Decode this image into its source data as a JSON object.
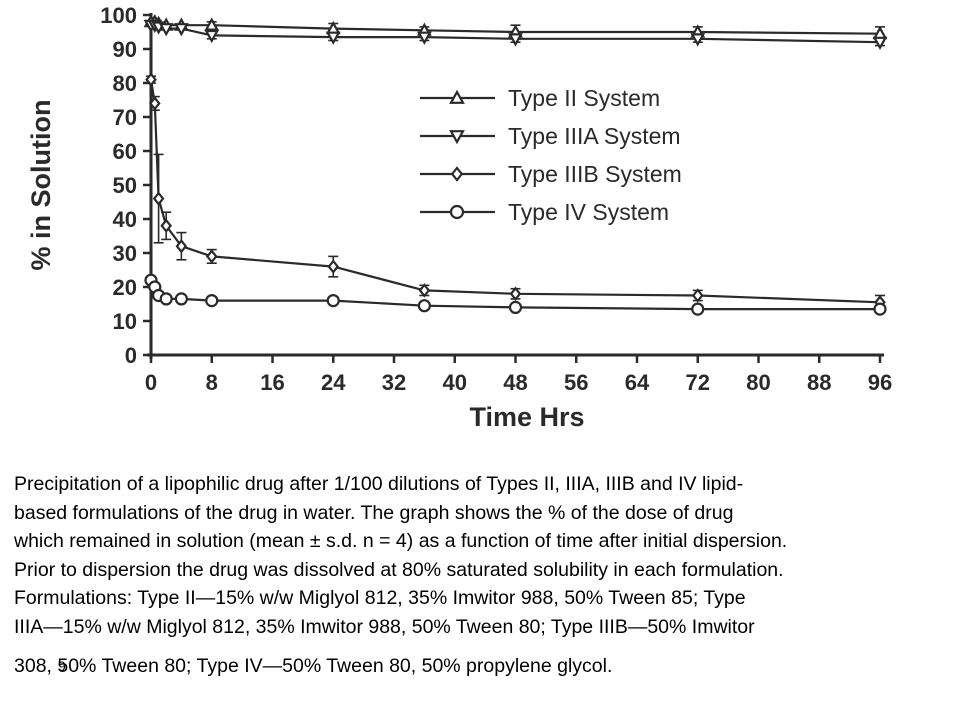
{
  "chart_data": {
    "type": "line",
    "ylabel": "% in Solution",
    "xlabel": "Time Hrs",
    "xlim": [
      0,
      96
    ],
    "ylim": [
      0,
      100
    ],
    "xticks": [
      "0",
      "8",
      "16",
      "24",
      "32",
      "40",
      "48",
      "56",
      "64",
      "72",
      "80",
      "88",
      "96"
    ],
    "yticks": [
      "0",
      "10",
      "20",
      "30",
      "40",
      "50",
      "60",
      "70",
      "80",
      "90",
      "100"
    ],
    "grid": false,
    "legend_position": "right",
    "error_bars": true,
    "series": [
      {
        "name": "Type II System",
        "marker": "triangle-up",
        "x": [
          0,
          0.5,
          1,
          2,
          4,
          8,
          24,
          36,
          48,
          72,
          96
        ],
        "y": [
          98,
          98,
          97.5,
          97,
          97,
          97,
          96,
          95.5,
          95,
          95,
          94.5
        ],
        "err": [
          0.5,
          0.5,
          0.5,
          0.5,
          0.5,
          1,
          1.5,
          1,
          2,
          1.5,
          2
        ]
      },
      {
        "name": "Type IIIA System",
        "marker": "triangle-down",
        "x": [
          0,
          0.5,
          1,
          2,
          4,
          8,
          24,
          36,
          48,
          72,
          96
        ],
        "y": [
          97,
          97,
          96.5,
          96,
          96,
          94,
          93.5,
          93.5,
          93,
          93,
          92
        ],
        "err": [
          0.5,
          0.5,
          0.5,
          0.5,
          0.5,
          1,
          1,
          1,
          1,
          1,
          1
        ]
      },
      {
        "name": "Type IIIB System",
        "marker": "diamond",
        "x": [
          0,
          0.5,
          1,
          2,
          4,
          8,
          24,
          36,
          48,
          72,
          96
        ],
        "y": [
          81,
          74,
          46,
          38,
          32,
          29,
          26,
          19,
          18,
          17.5,
          15.5
        ],
        "err": [
          1,
          2,
          13,
          4,
          4,
          2,
          3,
          1.5,
          1.5,
          1.5,
          2
        ]
      },
      {
        "name": "Type IV System",
        "marker": "circle",
        "x": [
          0,
          0.5,
          1,
          2,
          4,
          8,
          24,
          36,
          48,
          72,
          96
        ],
        "y": [
          22,
          20,
          17.5,
          16.5,
          16.5,
          16,
          16,
          14.5,
          14,
          13.5,
          13.5
        ],
        "err": [
          0.5,
          0.5,
          0.5,
          0.5,
          0.5,
          0.5,
          0.5,
          0.5,
          0.5,
          0.5,
          0.5
        ]
      }
    ]
  },
  "caption": {
    "lines": [
      "Precipitation of a lipophilic drug after 1/100 dilutions of Types II, IIIA, IIIB and IV lipid-",
      "based formulations of the drug in water. The graph shows the % of the dose of drug",
      "which remained in solution (mean ± s.d. n = 4) as a function of time after initial dispersion.",
      "Prior to dispersion the drug was dissolved at 80% saturated solubility in each formulation.",
      "Formulations: Type II—15% w/w Miglyol 812, 35% Imwitor 988, 50% Tween 85; Type",
      "IIIA—15% w/w Miglyol 812, 35% Imwitor 988, 50% Tween 80; Type IIIB—50% Imwitor",
      "308, 50% Tween 80; Type IV—50% Tween 80, 50% propylene glycol."
    ],
    "footnote": "9"
  }
}
